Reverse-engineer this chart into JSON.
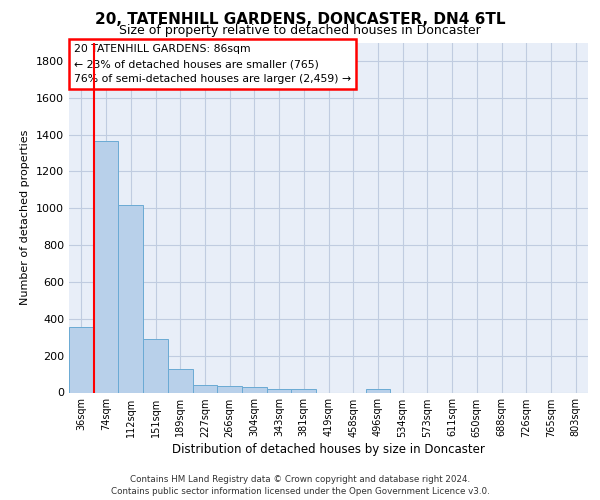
{
  "title": "20, TATENHILL GARDENS, DONCASTER, DN4 6TL",
  "subtitle": "Size of property relative to detached houses in Doncaster",
  "xlabel": "Distribution of detached houses by size in Doncaster",
  "ylabel": "Number of detached properties",
  "bar_labels": [
    "36sqm",
    "74sqm",
    "112sqm",
    "151sqm",
    "189sqm",
    "227sqm",
    "266sqm",
    "304sqm",
    "343sqm",
    "381sqm",
    "419sqm",
    "458sqm",
    "496sqm",
    "534sqm",
    "573sqm",
    "611sqm",
    "650sqm",
    "688sqm",
    "726sqm",
    "765sqm",
    "803sqm"
  ],
  "bar_values": [
    355,
    1365,
    1020,
    290,
    125,
    40,
    35,
    28,
    20,
    17,
    0,
    0,
    18,
    0,
    0,
    0,
    0,
    0,
    0,
    0,
    0
  ],
  "bar_color": "#b8d0ea",
  "bar_edge_color": "#6aaad4",
  "ylim": [
    0,
    1900
  ],
  "yticks": [
    0,
    200,
    400,
    600,
    800,
    1000,
    1200,
    1400,
    1600,
    1800
  ],
  "vline_x_index": 1,
  "annotation_title": "20 TATENHILL GARDENS: 86sqm",
  "annotation_line1": "← 23% of detached houses are smaller (765)",
  "annotation_line2": "76% of semi-detached houses are larger (2,459) →",
  "footer_line1": "Contains HM Land Registry data © Crown copyright and database right 2024.",
  "footer_line2": "Contains public sector information licensed under the Open Government Licence v3.0.",
  "bg_color": "#e8eef8",
  "grid_color": "#c0cce0"
}
